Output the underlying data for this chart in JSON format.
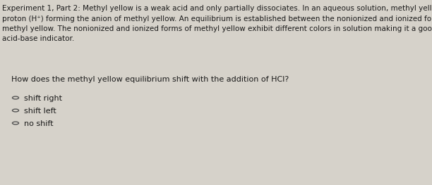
{
  "bg_color": "#d6d2ca",
  "paragraph_lines": [
    "Experiment 1, Part 2: Methyl yellow is a weak acid and only partially dissociates. In an aqueous solution, methyl yellow loses a",
    "proton (H⁺) forming the anion of methyl yellow. An equilibrium is established between the nonionized and ionized forms of",
    "methyl yellow. The nonionized and ionized forms of methyl yellow exhibit different colors in solution making it a good",
    "acid-base indicator."
  ],
  "question": "How does the methyl yellow equilibrium shift with the addition of HCl?",
  "options": [
    "shift right",
    "shift left",
    "no shift"
  ],
  "font_size_para": 7.5,
  "font_size_question": 8.0,
  "font_size_options": 8.0,
  "text_color": "#1a1a1a",
  "circle_color": "#555555"
}
